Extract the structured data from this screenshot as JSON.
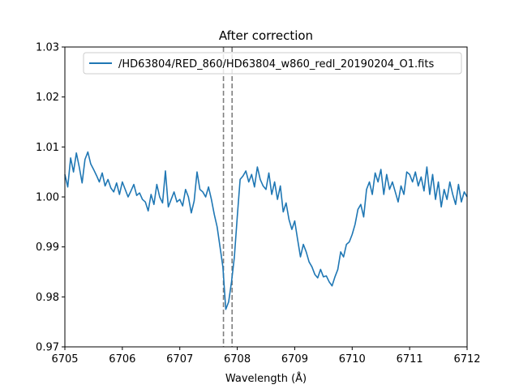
{
  "chart_data": {
    "type": "line",
    "title": "After correction",
    "xlabel": "Wavelength (Å)",
    "ylabel": "",
    "xlim": [
      6705,
      6712
    ],
    "ylim": [
      0.97,
      1.03
    ],
    "xticks": [
      6705,
      6706,
      6707,
      6708,
      6709,
      6710,
      6711,
      6712
    ],
    "xtick_labels": [
      "6705",
      "6706",
      "6707",
      "6708",
      "6709",
      "6710",
      "6711",
      "6712"
    ],
    "yticks": [
      0.97,
      0.98,
      0.99,
      1.0,
      1.01,
      1.02,
      1.03
    ],
    "ytick_labels": [
      "0.97",
      "0.98",
      "0.99",
      "1.00",
      "1.01",
      "1.02",
      "1.03"
    ],
    "legend_position": "top-right",
    "grid": false,
    "series": [
      {
        "name": "/HD63804/RED_860/HD63804_w860_redl_20190204_O1.fits",
        "color": "#1f77b4",
        "x": [
          6705.0,
          6705.05,
          6705.1,
          6705.15,
          6705.2,
          6705.25,
          6705.3,
          6705.35,
          6705.4,
          6705.45,
          6705.5,
          6705.55,
          6705.6,
          6705.65,
          6705.7,
          6705.75,
          6705.8,
          6705.85,
          6705.9,
          6705.95,
          6706.0,
          6706.05,
          6706.1,
          6706.15,
          6706.2,
          6706.25,
          6706.3,
          6706.35,
          6706.4,
          6706.45,
          6706.5,
          6706.55,
          6706.6,
          6706.65,
          6706.7,
          6706.75,
          6706.8,
          6706.85,
          6706.9,
          6706.95,
          6707.0,
          6707.05,
          6707.1,
          6707.15,
          6707.2,
          6707.25,
          6707.3,
          6707.35,
          6707.4,
          6707.45,
          6707.5,
          6707.55,
          6707.6,
          6707.65,
          6707.7,
          6707.75,
          6707.8,
          6707.85,
          6707.9,
          6707.95,
          6708.0,
          6708.05,
          6708.1,
          6708.15,
          6708.2,
          6708.25,
          6708.3,
          6708.35,
          6708.4,
          6708.45,
          6708.5,
          6708.55,
          6708.6,
          6708.65,
          6708.7,
          6708.75,
          6708.8,
          6708.85,
          6708.9,
          6708.95,
          6709.0,
          6709.05,
          6709.1,
          6709.15,
          6709.2,
          6709.25,
          6709.3,
          6709.35,
          6709.4,
          6709.45,
          6709.5,
          6709.55,
          6709.6,
          6709.65,
          6709.7,
          6709.75,
          6709.8,
          6709.85,
          6709.9,
          6709.95,
          6710.0,
          6710.05,
          6710.1,
          6710.15,
          6710.2,
          6710.25,
          6710.3,
          6710.35,
          6710.4,
          6710.45,
          6710.5,
          6710.55,
          6710.6,
          6710.65,
          6710.7,
          6710.75,
          6710.8,
          6710.85,
          6710.9,
          6710.95,
          6711.0,
          6711.05,
          6711.1,
          6711.15,
          6711.2,
          6711.25,
          6711.3,
          6711.35,
          6711.4,
          6711.45,
          6711.5,
          6711.55,
          6711.6,
          6711.65,
          6711.7,
          6711.75,
          6711.8,
          6711.85,
          6711.9,
          6711.95,
          6712.0
        ],
        "y": [
          1.0045,
          1.002,
          1.0078,
          1.005,
          1.0088,
          1.006,
          1.0028,
          1.0075,
          1.009,
          1.0066,
          1.0055,
          1.0043,
          1.003,
          1.0048,
          1.0022,
          1.0035,
          1.0018,
          1.001,
          1.0028,
          1.0005,
          1.003,
          1.0015,
          1.0,
          1.0012,
          1.0025,
          1.0003,
          1.0008,
          0.9995,
          0.999,
          0.9972,
          1.0005,
          0.9985,
          1.0025,
          1.0,
          0.9988,
          1.0052,
          0.998,
          0.9995,
          1.001,
          0.999,
          0.9995,
          0.9982,
          1.0015,
          1.0,
          0.9968,
          0.9992,
          1.005,
          1.0015,
          1.001,
          1.0,
          1.002,
          0.9995,
          0.9965,
          0.994,
          0.99,
          0.986,
          0.9775,
          0.979,
          0.983,
          0.988,
          0.996,
          1.0035,
          1.0042,
          1.0052,
          1.003,
          1.0045,
          1.002,
          1.006,
          1.0035,
          1.0022,
          1.0015,
          1.0048,
          1.0005,
          1.003,
          0.9995,
          1.0022,
          0.997,
          0.9988,
          0.9955,
          0.9935,
          0.9952,
          0.9915,
          0.988,
          0.9905,
          0.989,
          0.987,
          0.986,
          0.9845,
          0.9838,
          0.9855,
          0.984,
          0.9842,
          0.983,
          0.9822,
          0.984,
          0.9855,
          0.989,
          0.988,
          0.9905,
          0.991,
          0.9925,
          0.9945,
          0.9975,
          0.9985,
          0.996,
          1.0015,
          1.003,
          1.0005,
          1.0048,
          1.003,
          1.0055,
          1.0005,
          1.0045,
          1.0015,
          1.003,
          1.001,
          0.999,
          1.0022,
          1.0005,
          1.005,
          1.0045,
          1.003,
          1.005,
          1.0022,
          1.004,
          1.0012,
          1.006,
          1.0005,
          1.0045,
          0.9995,
          1.003,
          0.998,
          1.0015,
          0.9995,
          1.003,
          1.0005,
          0.9985,
          1.0025,
          0.999,
          1.001,
          1.0
        ]
      }
    ],
    "vlines": [
      {
        "x": 6707.76,
        "color": "#7f7f7f",
        "style": "dashed"
      },
      {
        "x": 6707.91,
        "color": "#7f7f7f",
        "style": "dashed"
      }
    ]
  }
}
